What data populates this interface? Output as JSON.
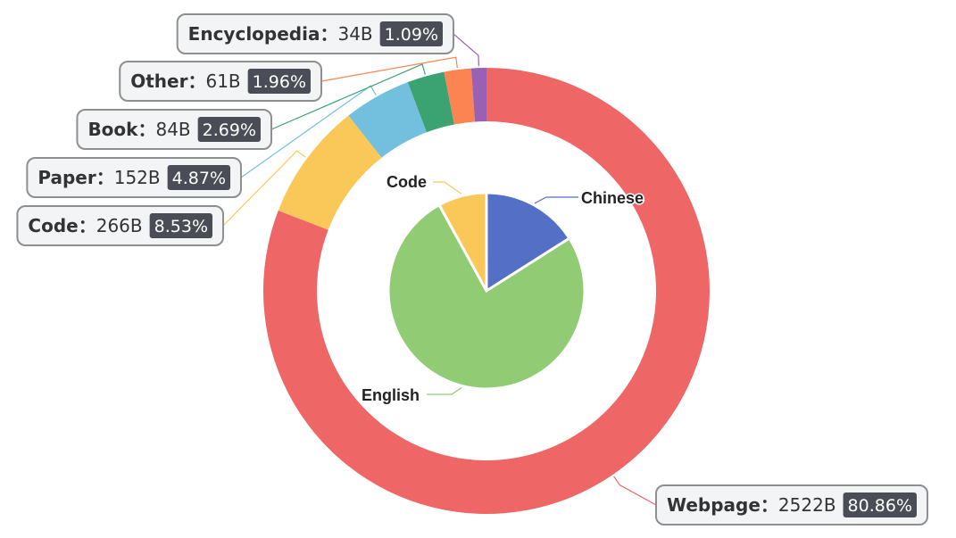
{
  "chart_data": [
    {
      "type": "pie",
      "variant": "donut",
      "ring": "outer",
      "slices": [
        {
          "name": "Webpage",
          "value": 2522,
          "value_label": "2522B",
          "percent": "80.86%",
          "color": "#ee6666"
        },
        {
          "name": "Code",
          "value": 266,
          "value_label": "266B",
          "percent": "8.53%",
          "color": "#fac858"
        },
        {
          "name": "Paper",
          "value": 152,
          "value_label": "152B",
          "percent": "4.87%",
          "color": "#73c0de"
        },
        {
          "name": "Book",
          "value": 84,
          "value_label": "84B",
          "percent": "2.69%",
          "color": "#3ba272"
        },
        {
          "name": "Other",
          "value": 61,
          "value_label": "61B",
          "percent": "1.96%",
          "color": "#fc8452"
        },
        {
          "name": "Encyclopedia",
          "value": 34,
          "value_label": "34B",
          "percent": "1.09%",
          "color": "#9a60b4"
        }
      ]
    },
    {
      "type": "pie",
      "ring": "inner",
      "slices": [
        {
          "name": "Chinese",
          "value": 16,
          "color": "#5470c6"
        },
        {
          "name": "English",
          "value": 76,
          "color": "#91cc75"
        },
        {
          "name": "Code",
          "value": 8,
          "color": "#fac858"
        }
      ]
    }
  ]
}
